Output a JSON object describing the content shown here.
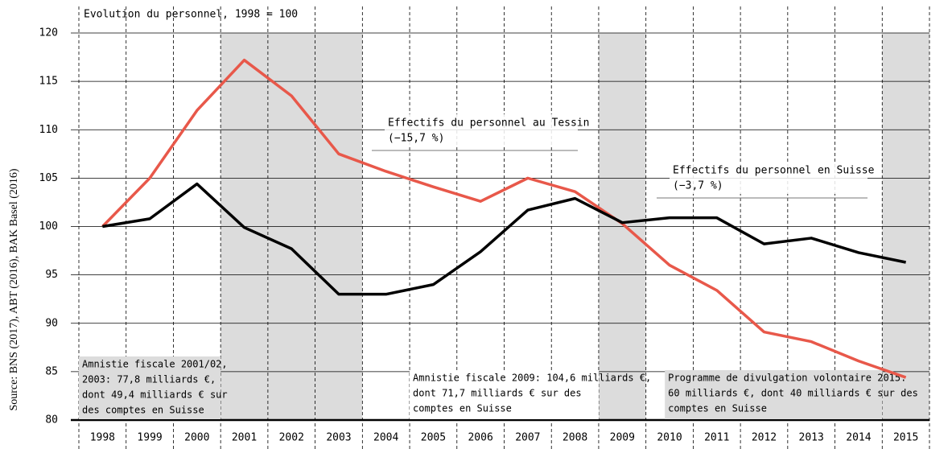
{
  "chart_data": {
    "type": "line",
    "title": "Evolution du personnel, 1998 = 100",
    "source": "Source: BNS (2017), ABT (2016), BAK Basel (2016)",
    "categories": [
      "1998",
      "1999",
      "2000",
      "2001",
      "2002",
      "2003",
      "2004",
      "2005",
      "2006",
      "2007",
      "2008",
      "2009",
      "2010",
      "2011",
      "2012",
      "2013",
      "2014",
      "2015"
    ],
    "series": [
      {
        "name": [
          "Effectifs du personnel au Tessin",
          "(−15,7 %)"
        ],
        "color": "#e8584a",
        "values": [
          100,
          105,
          112,
          117.2,
          113.5,
          107.5,
          105.7,
          104.1,
          102.6,
          105.0,
          103.6,
          100.3,
          96.0,
          93.4,
          89.1,
          88.1,
          86.1,
          84.4
        ]
      },
      {
        "name": [
          "Effectifs du personnel en Suisse",
          "(−3,7 %)"
        ],
        "color": "#000000",
        "values": [
          100,
          100.8,
          104.4,
          99.9,
          97.7,
          93.0,
          93.0,
          94.0,
          97.4,
          101.7,
          102.9,
          100.4,
          100.9,
          100.9,
          98.2,
          98.8,
          97.3,
          96.3
        ]
      }
    ],
    "shaded": [
      3,
      4,
      5,
      11,
      17
    ],
    "ylim": [
      80,
      120
    ],
    "yticks": [
      80,
      85,
      90,
      95,
      100,
      105,
      110,
      115,
      120
    ],
    "grid": true,
    "annotations": [
      [
        "Amnistie fiscale 2001/02,",
        "2003: 77,8 milliards €,",
        "dont 49,4 milliards € sur",
        "des comptes en Suisse"
      ],
      [
        "Amnistie fiscale 2009: 104,6 milliards €,",
        "dont 71,7 milliards € sur des",
        "comptes en Suisse"
      ],
      [
        "Programme de divulgation volontaire 2015:",
        "60 milliards €, dont 40 milliards € sur des",
        "comptes en Suisse"
      ]
    ]
  }
}
